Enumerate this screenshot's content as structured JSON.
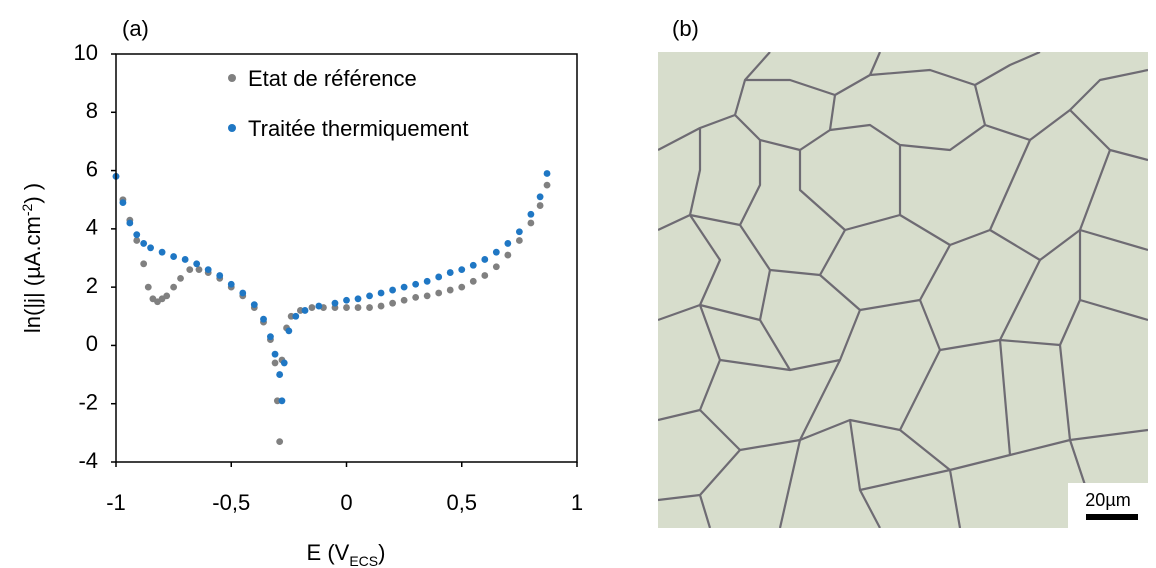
{
  "chart_data": {
    "type": "scatter",
    "panel_label": "(a)",
    "xlabel_parts": [
      "E (V",
      "ECS",
      ")"
    ],
    "ylabel_parts": [
      "ln(|j| (µA.cm",
      "-2",
      ") )"
    ],
    "xlim": [
      -1,
      1
    ],
    "ylim": [
      -4,
      10
    ],
    "xticks": [
      -1,
      {
        "value": -0.5,
        "label": "-0,5"
      },
      0,
      {
        "value": 0.5,
        "label": "0,5"
      },
      1
    ],
    "yticks": [
      -4,
      -2,
      0,
      2,
      4,
      6,
      8,
      10
    ],
    "grid": false,
    "legend": "upper right",
    "series": [
      {
        "name": "Etat de référence",
        "color": "#808080",
        "x": [
          -1,
          -0.97,
          -0.94,
          -0.91,
          -0.88,
          -0.86,
          -0.84,
          -0.82,
          -0.8,
          -0.78,
          -0.75,
          -0.72,
          -0.68,
          -0.64,
          -0.6,
          -0.55,
          -0.5,
          -0.45,
          -0.4,
          -0.36,
          -0.33,
          -0.31,
          -0.3,
          -0.29,
          -0.28,
          -0.26,
          -0.24,
          -0.2,
          -0.15,
          -0.1,
          -0.05,
          0,
          0.05,
          0.1,
          0.15,
          0.2,
          0.25,
          0.3,
          0.35,
          0.4,
          0.45,
          0.5,
          0.55,
          0.6,
          0.65,
          0.7,
          0.75,
          0.8,
          0.84,
          0.87
        ],
        "values": [
          5.8,
          5.0,
          4.3,
          3.6,
          2.8,
          2.0,
          1.6,
          1.5,
          1.6,
          1.7,
          2.0,
          2.3,
          2.6,
          2.6,
          2.5,
          2.3,
          2.0,
          1.7,
          1.3,
          0.8,
          0.2,
          -0.6,
          -1.9,
          -3.3,
          -0.5,
          0.6,
          1.0,
          1.2,
          1.3,
          1.3,
          1.3,
          1.3,
          1.3,
          1.3,
          1.35,
          1.45,
          1.55,
          1.65,
          1.7,
          1.8,
          1.9,
          2.0,
          2.2,
          2.4,
          2.7,
          3.1,
          3.6,
          4.2,
          4.8,
          5.5
        ]
      },
      {
        "name": "Traitée thermiquement",
        "color": "#1f77c4",
        "x": [
          -1,
          -0.97,
          -0.94,
          -0.91,
          -0.88,
          -0.85,
          -0.8,
          -0.75,
          -0.7,
          -0.65,
          -0.6,
          -0.55,
          -0.5,
          -0.45,
          -0.4,
          -0.36,
          -0.33,
          -0.31,
          -0.29,
          -0.28,
          -0.27,
          -0.25,
          -0.22,
          -0.18,
          -0.12,
          -0.05,
          0,
          0.05,
          0.1,
          0.15,
          0.2,
          0.25,
          0.3,
          0.35,
          0.4,
          0.45,
          0.5,
          0.55,
          0.6,
          0.65,
          0.7,
          0.75,
          0.8,
          0.84,
          0.87
        ],
        "values": [
          5.8,
          4.9,
          4.2,
          3.8,
          3.5,
          3.35,
          3.2,
          3.05,
          2.95,
          2.8,
          2.6,
          2.4,
          2.1,
          1.8,
          1.4,
          0.9,
          0.3,
          -0.3,
          -1.0,
          -1.9,
          -0.6,
          0.5,
          1.0,
          1.2,
          1.35,
          1.45,
          1.55,
          1.6,
          1.7,
          1.8,
          1.9,
          2.0,
          2.1,
          2.2,
          2.35,
          2.5,
          2.6,
          2.75,
          2.95,
          3.2,
          3.5,
          3.9,
          4.5,
          5.1,
          5.9
        ]
      }
    ]
  },
  "panel_b": {
    "label": "(b)",
    "scale_bar": "20µm"
  }
}
